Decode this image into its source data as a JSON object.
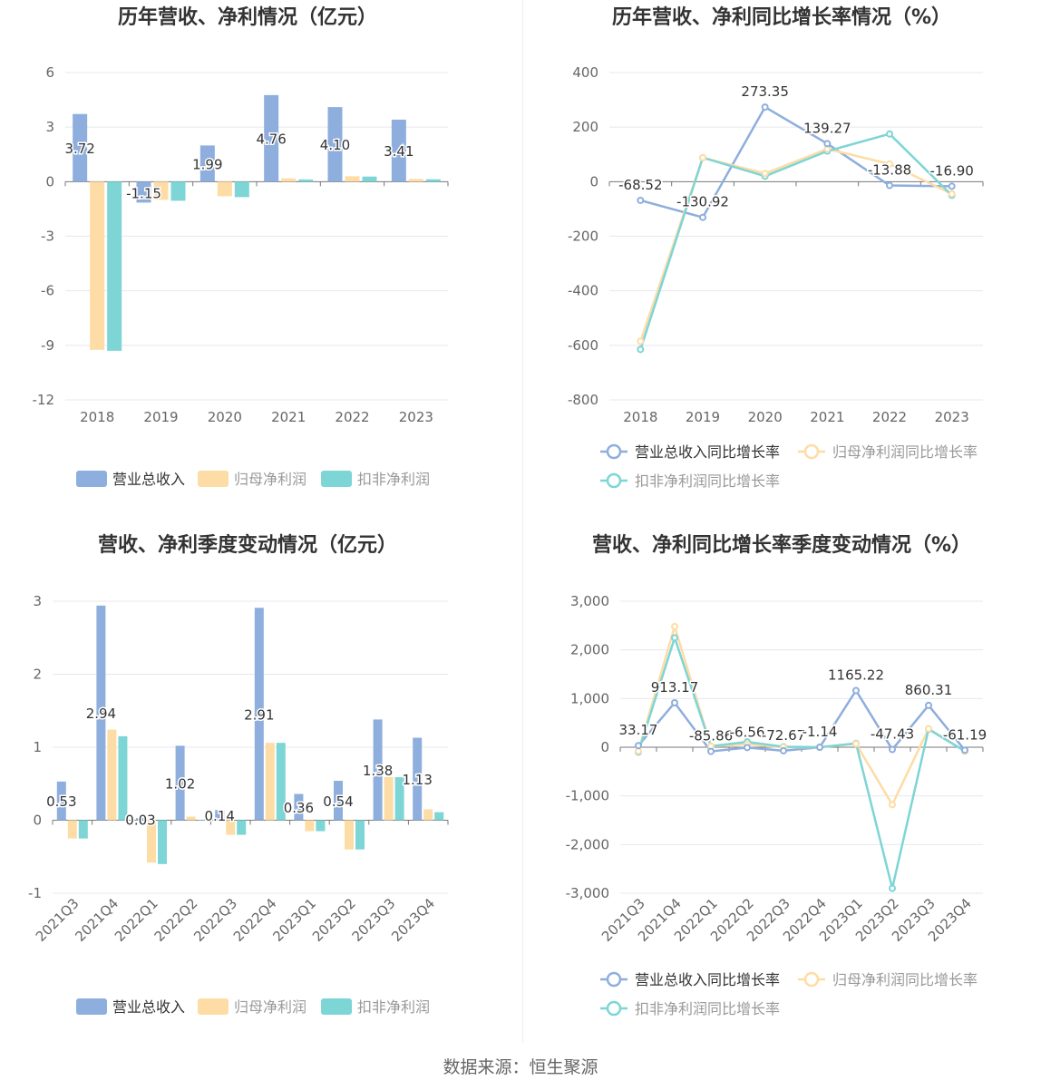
{
  "source_text": "数据来源：恒生聚源",
  "colors": {
    "revenue": "#8eaedd",
    "parent_profit": "#fddca6",
    "deducted_profit": "#7dd5d5"
  },
  "chart_data": [
    {
      "type": "bar",
      "title": "历年营收、净利情况（亿元）",
      "categories": [
        "2018",
        "2019",
        "2020",
        "2021",
        "2022",
        "2023"
      ],
      "ylim": [
        -12,
        6
      ],
      "yticks": [
        6,
        3,
        0,
        -3,
        -6,
        -9,
        -12
      ],
      "legend": "bottom",
      "series": [
        {
          "name": "营业总收入",
          "values": [
            3.72,
            -1.15,
            1.99,
            4.76,
            4.1,
            3.41
          ],
          "labels": [
            "3.72",
            "-1.15",
            "1.99",
            "4.76",
            "4.10",
            "3.41"
          ]
        },
        {
          "name": "归母净利润",
          "values": [
            -9.25,
            -1.0,
            -0.8,
            0.18,
            0.3,
            0.15
          ]
        },
        {
          "name": "扣非净利润",
          "values": [
            -9.3,
            -1.05,
            -0.85,
            0.12,
            0.28,
            0.13
          ]
        }
      ]
    },
    {
      "type": "line",
      "title": "历年营收、净利同比增长率情况（%）",
      "categories": [
        "2018",
        "2019",
        "2020",
        "2021",
        "2022",
        "2023"
      ],
      "ylim": [
        -800,
        400
      ],
      "yticks": [
        400,
        200,
        0,
        -200,
        -400,
        -600,
        -800
      ],
      "legend": "bottom",
      "series": [
        {
          "name": "营业总收入同比增长率",
          "values": [
            -68.52,
            -130.92,
            273.35,
            139.27,
            -13.88,
            -16.9
          ],
          "labels": [
            "-68.52",
            "-130.92",
            "273.35",
            "139.27",
            "-13.88",
            "-16.90"
          ]
        },
        {
          "name": "归母净利润同比增长率",
          "values": [
            -585,
            88,
            30,
            120,
            65,
            -45
          ]
        },
        {
          "name": "扣非净利润同比增长率",
          "values": [
            -615,
            88,
            20,
            112,
            175,
            -50
          ]
        }
      ]
    },
    {
      "type": "bar",
      "title": "营收、净利季度变动情况（亿元）",
      "categories": [
        "2021Q3",
        "2021Q4",
        "2022Q1",
        "2022Q2",
        "2022Q3",
        "2022Q4",
        "2023Q1",
        "2023Q2",
        "2023Q3",
        "2023Q4"
      ],
      "ylim": [
        -1,
        3
      ],
      "yticks": [
        3,
        2,
        1,
        0,
        -1
      ],
      "legend": "bottom",
      "series": [
        {
          "name": "营业总收入",
          "values": [
            0.53,
            2.94,
            0.03,
            1.02,
            0.14,
            2.91,
            0.36,
            0.54,
            1.38,
            1.13
          ],
          "labels": [
            "0.53",
            "2.94",
            "0.03",
            "1.02",
            "0.14",
            "2.91",
            "0.36",
            "0.54",
            "1.38",
            "1.13"
          ]
        },
        {
          "name": "归母净利润",
          "values": [
            -0.25,
            1.24,
            -0.58,
            0.05,
            -0.2,
            1.06,
            -0.15,
            -0.4,
            0.59,
            0.15
          ]
        },
        {
          "name": "扣非净利润",
          "values": [
            -0.25,
            1.15,
            -0.6,
            0.0,
            -0.2,
            1.06,
            -0.15,
            -0.4,
            0.59,
            0.11
          ]
        }
      ]
    },
    {
      "type": "line",
      "title": "营收、净利同比增长率季度变动情况（%）",
      "categories": [
        "2021Q3",
        "2021Q4",
        "2022Q1",
        "2022Q2",
        "2022Q3",
        "2022Q4",
        "2023Q1",
        "2023Q2",
        "2023Q3",
        "2023Q4"
      ],
      "ylim": [
        -3000,
        3000
      ],
      "yticks": [
        3000,
        2000,
        1000,
        0,
        -1000,
        -2000,
        -3000
      ],
      "ytick_labels": [
        "3,000",
        "2,000",
        "1,000",
        "0",
        "-1,000",
        "-2,000",
        "-3,000"
      ],
      "legend": "bottom",
      "series": [
        {
          "name": "营业总收入同比增长率",
          "values": [
            33.17,
            913.17,
            -85.86,
            -6.56,
            -72.67,
            -1.14,
            1165.22,
            -47.43,
            860.31,
            -61.19
          ],
          "labels": [
            "33.17",
            "913.17",
            "-85.86",
            "-6.56",
            "-72.67",
            "-1.14",
            "1165.22",
            "-47.43",
            "860.31",
            "-61.19"
          ]
        },
        {
          "name": "归母净利润同比增长率",
          "values": [
            -80,
            2480,
            20,
            60,
            0,
            0,
            70,
            -1180,
            380,
            -80
          ]
        },
        {
          "name": "扣非净利润同比增长率",
          "values": [
            -100,
            2250,
            20,
            110,
            10,
            0,
            80,
            -2900,
            370,
            -80
          ]
        }
      ]
    }
  ]
}
